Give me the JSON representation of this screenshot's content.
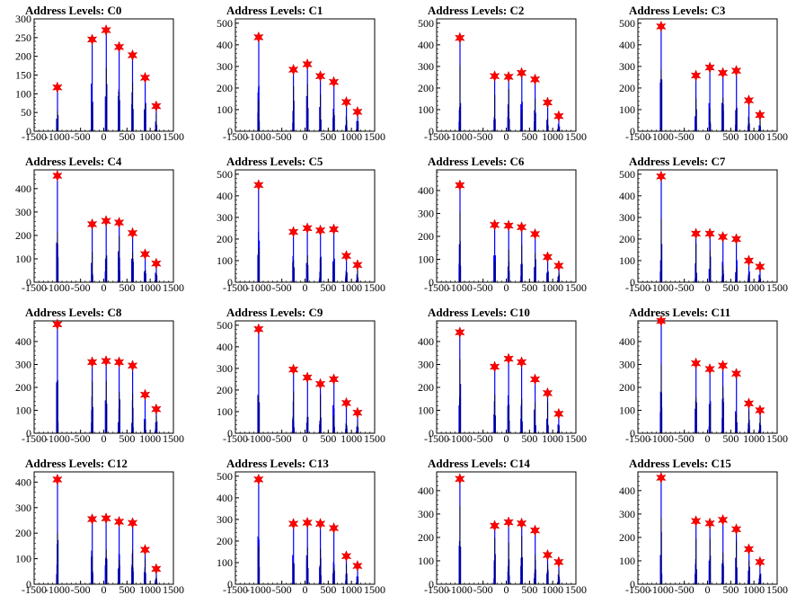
{
  "chart_data": {
    "type": "histogram",
    "panels": [
      {
        "title": "Address Levels: C0",
        "ylim": [
          0,
          300
        ],
        "yticks": [
          0,
          50,
          100,
          150,
          200,
          250,
          300
        ],
        "peaks": [
          {
            "x": -1000,
            "y": 117
          },
          {
            "x": -250,
            "y": 245
          },
          {
            "x": 50,
            "y": 270
          },
          {
            "x": 330,
            "y": 225
          },
          {
            "x": 620,
            "y": 203
          },
          {
            "x": 890,
            "y": 143
          },
          {
            "x": 1130,
            "y": 67
          }
        ]
      },
      {
        "title": "Address Levels: C1",
        "ylim": [
          0,
          520
        ],
        "yticks": [
          0,
          100,
          200,
          300,
          400,
          500
        ],
        "peaks": [
          {
            "x": -1000,
            "y": 435
          },
          {
            "x": -250,
            "y": 285
          },
          {
            "x": 50,
            "y": 310
          },
          {
            "x": 330,
            "y": 255
          },
          {
            "x": 620,
            "y": 228
          },
          {
            "x": 890,
            "y": 135
          },
          {
            "x": 1130,
            "y": 90
          }
        ]
      },
      {
        "title": "Address Levels: C2",
        "ylim": [
          0,
          520
        ],
        "yticks": [
          0,
          100,
          200,
          300,
          400,
          500
        ],
        "peaks": [
          {
            "x": -1000,
            "y": 432
          },
          {
            "x": -250,
            "y": 255
          },
          {
            "x": 50,
            "y": 252
          },
          {
            "x": 330,
            "y": 270
          },
          {
            "x": 620,
            "y": 240
          },
          {
            "x": 890,
            "y": 133
          },
          {
            "x": 1130,
            "y": 70
          }
        ]
      },
      {
        "title": "Address Levels: C3",
        "ylim": [
          0,
          520
        ],
        "yticks": [
          0,
          100,
          200,
          300,
          400,
          500
        ],
        "peaks": [
          {
            "x": -1000,
            "y": 485
          },
          {
            "x": -250,
            "y": 258
          },
          {
            "x": 50,
            "y": 295
          },
          {
            "x": 330,
            "y": 270
          },
          {
            "x": 620,
            "y": 280
          },
          {
            "x": 890,
            "y": 143
          },
          {
            "x": 1130,
            "y": 75
          }
        ]
      },
      {
        "title": "Address Levels: C4",
        "ylim": [
          0,
          480
        ],
        "yticks": [
          0,
          100,
          200,
          300,
          400
        ],
        "peaks": [
          {
            "x": -1000,
            "y": 455
          },
          {
            "x": -250,
            "y": 248
          },
          {
            "x": 50,
            "y": 262
          },
          {
            "x": 330,
            "y": 255
          },
          {
            "x": 620,
            "y": 210
          },
          {
            "x": 890,
            "y": 120
          },
          {
            "x": 1130,
            "y": 80
          }
        ]
      },
      {
        "title": "Address Levels: C5",
        "ylim": [
          0,
          520
        ],
        "yticks": [
          0,
          100,
          200,
          300,
          400,
          500
        ],
        "peaks": [
          {
            "x": -1000,
            "y": 450
          },
          {
            "x": -250,
            "y": 233
          },
          {
            "x": 50,
            "y": 250
          },
          {
            "x": 330,
            "y": 240
          },
          {
            "x": 620,
            "y": 245
          },
          {
            "x": 890,
            "y": 122
          },
          {
            "x": 1130,
            "y": 80
          }
        ]
      },
      {
        "title": "Address Levels: C6",
        "ylim": [
          0,
          490
        ],
        "yticks": [
          0,
          100,
          200,
          300,
          400
        ],
        "peaks": [
          {
            "x": -1000,
            "y": 423
          },
          {
            "x": -250,
            "y": 250
          },
          {
            "x": 50,
            "y": 247
          },
          {
            "x": 330,
            "y": 240
          },
          {
            "x": 620,
            "y": 210
          },
          {
            "x": 890,
            "y": 110
          },
          {
            "x": 1130,
            "y": 72
          }
        ]
      },
      {
        "title": "Address Levels: C7",
        "ylim": [
          0,
          520
        ],
        "yticks": [
          0,
          100,
          200,
          300,
          400,
          500
        ],
        "peaks": [
          {
            "x": -1000,
            "y": 490
          },
          {
            "x": -250,
            "y": 225
          },
          {
            "x": 50,
            "y": 225
          },
          {
            "x": 330,
            "y": 210
          },
          {
            "x": 620,
            "y": 200
          },
          {
            "x": 890,
            "y": 100
          },
          {
            "x": 1130,
            "y": 72
          }
        ]
      },
      {
        "title": "Address Levels: C8",
        "ylim": [
          0,
          490
        ],
        "yticks": [
          0,
          100,
          200,
          300,
          400
        ],
        "peaks": [
          {
            "x": -1000,
            "y": 475
          },
          {
            "x": -250,
            "y": 310
          },
          {
            "x": 50,
            "y": 315
          },
          {
            "x": 330,
            "y": 310
          },
          {
            "x": 620,
            "y": 295
          },
          {
            "x": 890,
            "y": 168
          },
          {
            "x": 1130,
            "y": 105
          }
        ]
      },
      {
        "title": "Address Levels: C9",
        "ylim": [
          0,
          520
        ],
        "yticks": [
          0,
          100,
          200,
          300,
          400,
          500
        ],
        "peaks": [
          {
            "x": -1000,
            "y": 482
          },
          {
            "x": -250,
            "y": 295
          },
          {
            "x": 50,
            "y": 258
          },
          {
            "x": 330,
            "y": 228
          },
          {
            "x": 620,
            "y": 250
          },
          {
            "x": 890,
            "y": 140
          },
          {
            "x": 1130,
            "y": 95
          }
        ]
      },
      {
        "title": "Address Levels: C10",
        "ylim": [
          0,
          490
        ],
        "yticks": [
          0,
          100,
          200,
          300,
          400
        ],
        "peaks": [
          {
            "x": -1000,
            "y": 440
          },
          {
            "x": -250,
            "y": 290
          },
          {
            "x": 50,
            "y": 325
          },
          {
            "x": 330,
            "y": 310
          },
          {
            "x": 620,
            "y": 235
          },
          {
            "x": 890,
            "y": 175
          },
          {
            "x": 1130,
            "y": 85
          }
        ]
      },
      {
        "title": "Address Levels: C11",
        "ylim": [
          0,
          490
        ],
        "yticks": [
          0,
          100,
          200,
          300,
          400
        ],
        "peaks": [
          {
            "x": -1000,
            "y": 490
          },
          {
            "x": -250,
            "y": 305
          },
          {
            "x": 50,
            "y": 280
          },
          {
            "x": 330,
            "y": 295
          },
          {
            "x": 620,
            "y": 260
          },
          {
            "x": 890,
            "y": 130
          },
          {
            "x": 1130,
            "y": 100
          }
        ]
      },
      {
        "title": "Address Levels: C12",
        "ylim": [
          0,
          440
        ],
        "yticks": [
          0,
          100,
          200,
          300,
          400
        ],
        "peaks": [
          {
            "x": -1000,
            "y": 410
          },
          {
            "x": -250,
            "y": 255
          },
          {
            "x": 50,
            "y": 258
          },
          {
            "x": 330,
            "y": 245
          },
          {
            "x": 620,
            "y": 240
          },
          {
            "x": 890,
            "y": 135
          },
          {
            "x": 1130,
            "y": 60
          }
        ]
      },
      {
        "title": "Address Levels: C13",
        "ylim": [
          0,
          520
        ],
        "yticks": [
          0,
          100,
          200,
          300,
          400,
          500
        ],
        "peaks": [
          {
            "x": -1000,
            "y": 485
          },
          {
            "x": -250,
            "y": 280
          },
          {
            "x": 50,
            "y": 285
          },
          {
            "x": 330,
            "y": 280
          },
          {
            "x": 620,
            "y": 260
          },
          {
            "x": 890,
            "y": 130
          },
          {
            "x": 1130,
            "y": 85
          }
        ]
      },
      {
        "title": "Address Levels: C14",
        "ylim": [
          0,
          480
        ],
        "yticks": [
          0,
          100,
          200,
          300,
          400
        ],
        "peaks": [
          {
            "x": -1000,
            "y": 450
          },
          {
            "x": -250,
            "y": 250
          },
          {
            "x": 50,
            "y": 265
          },
          {
            "x": 330,
            "y": 260
          },
          {
            "x": 620,
            "y": 230
          },
          {
            "x": 890,
            "y": 125
          },
          {
            "x": 1130,
            "y": 95
          }
        ]
      },
      {
        "title": "Address Levels: C15",
        "ylim": [
          0,
          480
        ],
        "yticks": [
          0,
          100,
          200,
          300,
          400
        ],
        "peaks": [
          {
            "x": -1000,
            "y": 455
          },
          {
            "x": -250,
            "y": 270
          },
          {
            "x": 50,
            "y": 260
          },
          {
            "x": 330,
            "y": 275
          },
          {
            "x": 620,
            "y": 235
          },
          {
            "x": 890,
            "y": 150
          },
          {
            "x": 1130,
            "y": 95
          }
        ]
      }
    ],
    "xlim": [
      -1500,
      1500
    ],
    "xticks": [
      -1500,
      -1000,
      -500,
      0,
      500,
      1000,
      1500
    ],
    "xtick_labels": [
      "-1500",
      "-1000",
      "-500",
      "0",
      "500",
      "1000",
      "1500"
    ],
    "line_color": "#0000ff",
    "marker_color": "#ff0000",
    "marker_shape": "star"
  }
}
